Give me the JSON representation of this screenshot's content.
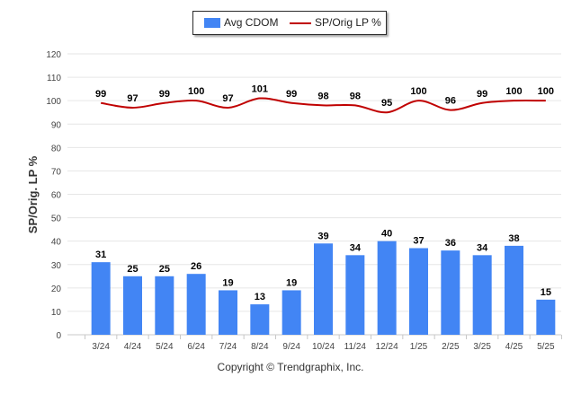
{
  "chart_data": {
    "type": "bar",
    "categories": [
      "3/24",
      "4/24",
      "5/24",
      "6/24",
      "7/24",
      "8/24",
      "9/24",
      "10/24",
      "11/24",
      "12/24",
      "1/25",
      "2/25",
      "3/25",
      "4/25",
      "5/25"
    ],
    "series": [
      {
        "name": "Avg CDOM",
        "type": "bar",
        "color": "#4285f4",
        "values": [
          31,
          25,
          25,
          26,
          19,
          13,
          19,
          39,
          34,
          40,
          37,
          36,
          34,
          38,
          15
        ]
      },
      {
        "name": "SP/Orig LP %",
        "type": "line",
        "color": "#c00000",
        "values": [
          99,
          97,
          99,
          100,
          97,
          101,
          99,
          98,
          98,
          95,
          100,
          96,
          99,
          100,
          100
        ]
      }
    ],
    "ylabel": "SP/Orig. LP %",
    "ylim": [
      0,
      120
    ],
    "yticks": [
      0,
      10,
      20,
      30,
      40,
      50,
      60,
      70,
      80,
      90,
      100,
      110,
      120
    ],
    "grid": true,
    "legend_position": "top-center"
  },
  "footer": {
    "copyright": "Copyright © Trendgraphix, Inc."
  }
}
